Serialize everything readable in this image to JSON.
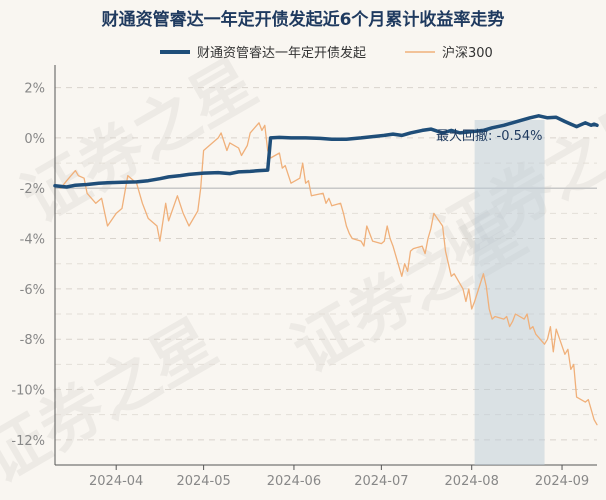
{
  "chart_data": {
    "type": "line",
    "title": "财通资管睿达一年定开债发起近6个月累计收益率走势",
    "watermark": "证券之星",
    "x_ticks": [
      "2024-04",
      "2024-05",
      "2024-06",
      "2024-07",
      "2024-08",
      "2024-09"
    ],
    "x_tick_dates": [
      "2024-04-01",
      "2024-05-01",
      "2024-06-01",
      "2024-07-01",
      "2024-08-01",
      "2024-09-01"
    ],
    "x_range": [
      "2024-03-11",
      "2024-09-13"
    ],
    "y_ticks": [
      2,
      0,
      -2,
      -4,
      -6,
      -8,
      -10,
      -12
    ],
    "y_tick_labels": [
      "2%",
      "0%",
      "-2%",
      "-4%",
      "-6%",
      "-8%",
      "-10%",
      "-12%"
    ],
    "ylim": [
      -13,
      2.5
    ],
    "grid": true,
    "legend_position": "top",
    "drawdown": {
      "label": "最大回撤: -0.54%",
      "start": "2024-08-02",
      "end": "2024-08-26"
    },
    "series": [
      {
        "name": "财通资管睿达一年定开债发起",
        "color": "#1f4e79",
        "points": [
          [
            "2024-03-11",
            -1.9
          ],
          [
            "2024-03-15",
            -1.95
          ],
          [
            "2024-03-18",
            -1.88
          ],
          [
            "2024-03-22",
            -1.85
          ],
          [
            "2024-03-26",
            -1.8
          ],
          [
            "2024-03-29",
            -1.78
          ],
          [
            "2024-04-03",
            -1.76
          ],
          [
            "2024-04-08",
            -1.75
          ],
          [
            "2024-04-12",
            -1.7
          ],
          [
            "2024-04-16",
            -1.62
          ],
          [
            "2024-04-19",
            -1.55
          ],
          [
            "2024-04-23",
            -1.5
          ],
          [
            "2024-04-26",
            -1.45
          ],
          [
            "2024-05-01",
            -1.4
          ],
          [
            "2024-05-06",
            -1.38
          ],
          [
            "2024-05-10",
            -1.42
          ],
          [
            "2024-05-13",
            -1.35
          ],
          [
            "2024-05-17",
            -1.33
          ],
          [
            "2024-05-20",
            -1.3
          ],
          [
            "2024-05-23",
            -1.28
          ],
          [
            "2024-05-24",
            0.0
          ],
          [
            "2024-05-27",
            0.02
          ],
          [
            "2024-05-31",
            0.0
          ],
          [
            "2024-06-05",
            0.0
          ],
          [
            "2024-06-10",
            -0.02
          ],
          [
            "2024-06-14",
            -0.05
          ],
          [
            "2024-06-19",
            -0.05
          ],
          [
            "2024-06-24",
            0.0
          ],
          [
            "2024-06-28",
            0.05
          ],
          [
            "2024-07-02",
            0.1
          ],
          [
            "2024-07-05",
            0.15
          ],
          [
            "2024-07-08",
            0.1
          ],
          [
            "2024-07-11",
            0.2
          ],
          [
            "2024-07-15",
            0.3
          ],
          [
            "2024-07-18",
            0.35
          ],
          [
            "2024-07-22",
            0.2
          ],
          [
            "2024-07-25",
            0.3
          ],
          [
            "2024-07-28",
            0.2
          ],
          [
            "2024-08-01",
            0.25
          ],
          [
            "2024-08-05",
            0.3
          ],
          [
            "2024-08-08",
            0.4
          ],
          [
            "2024-08-12",
            0.5
          ],
          [
            "2024-08-15",
            0.6
          ],
          [
            "2024-08-18",
            0.7
          ],
          [
            "2024-08-21",
            0.8
          ],
          [
            "2024-08-24",
            0.88
          ],
          [
            "2024-08-27",
            0.8
          ],
          [
            "2024-08-30",
            0.82
          ],
          [
            "2024-09-02",
            0.65
          ],
          [
            "2024-09-04",
            0.55
          ],
          [
            "2024-09-06",
            0.45
          ],
          [
            "2024-09-09",
            0.6
          ],
          [
            "2024-09-11",
            0.5
          ],
          [
            "2024-09-12",
            0.55
          ],
          [
            "2024-09-13",
            0.5
          ]
        ]
      },
      {
        "name": "沪深300",
        "color": "#f0b07a",
        "points": [
          [
            "2024-03-11",
            -1.9
          ],
          [
            "2024-03-13",
            -2.0
          ],
          [
            "2024-03-15",
            -1.7
          ],
          [
            "2024-03-18",
            -1.3
          ],
          [
            "2024-03-19",
            -1.5
          ],
          [
            "2024-03-21",
            -1.6
          ],
          [
            "2024-03-22",
            -2.2
          ],
          [
            "2024-03-25",
            -2.6
          ],
          [
            "2024-03-27",
            -2.4
          ],
          [
            "2024-03-29",
            -3.5
          ],
          [
            "2024-04-01",
            -3.0
          ],
          [
            "2024-04-03",
            -2.8
          ],
          [
            "2024-04-05",
            -1.5
          ],
          [
            "2024-04-08",
            -1.8
          ],
          [
            "2024-04-10",
            -2.6
          ],
          [
            "2024-04-12",
            -3.2
          ],
          [
            "2024-04-15",
            -3.5
          ],
          [
            "2024-04-16",
            -4.1
          ],
          [
            "2024-04-18",
            -2.6
          ],
          [
            "2024-04-19",
            -3.3
          ],
          [
            "2024-04-22",
            -2.3
          ],
          [
            "2024-04-24",
            -3.0
          ],
          [
            "2024-04-26",
            -3.5
          ],
          [
            "2024-04-29",
            -2.9
          ],
          [
            "2024-04-30",
            -2.0
          ],
          [
            "2024-05-01",
            -0.5
          ],
          [
            "2024-05-06",
            0.0
          ],
          [
            "2024-05-07",
            0.2
          ],
          [
            "2024-05-09",
            -0.5
          ],
          [
            "2024-05-10",
            -0.2
          ],
          [
            "2024-05-13",
            -0.4
          ],
          [
            "2024-05-14",
            -0.7
          ],
          [
            "2024-05-16",
            -0.3
          ],
          [
            "2024-05-17",
            0.2
          ],
          [
            "2024-05-20",
            0.6
          ],
          [
            "2024-05-21",
            0.3
          ],
          [
            "2024-05-22",
            0.5
          ],
          [
            "2024-05-23",
            -0.5
          ],
          [
            "2024-05-24",
            -0.8
          ],
          [
            "2024-05-27",
            -0.6
          ],
          [
            "2024-05-28",
            -1.2
          ],
          [
            "2024-05-29",
            -1.1
          ],
          [
            "2024-05-31",
            -1.8
          ],
          [
            "2024-06-03",
            -1.6
          ],
          [
            "2024-06-04",
            -1.0
          ],
          [
            "2024-06-05",
            -1.8
          ],
          [
            "2024-06-06",
            -1.7
          ],
          [
            "2024-06-07",
            -2.3
          ],
          [
            "2024-06-11",
            -2.2
          ],
          [
            "2024-06-12",
            -2.6
          ],
          [
            "2024-06-13",
            -2.4
          ],
          [
            "2024-06-14",
            -2.7
          ],
          [
            "2024-06-17",
            -2.6
          ],
          [
            "2024-06-18",
            -3.0
          ],
          [
            "2024-06-19",
            -3.5
          ],
          [
            "2024-06-20",
            -3.8
          ],
          [
            "2024-06-21",
            -4.0
          ],
          [
            "2024-06-24",
            -4.1
          ],
          [
            "2024-06-25",
            -4.3
          ],
          [
            "2024-06-26",
            -3.5
          ],
          [
            "2024-06-27",
            -3.8
          ],
          [
            "2024-06-28",
            -4.1
          ],
          [
            "2024-07-01",
            -4.2
          ],
          [
            "2024-07-02",
            -4.1
          ],
          [
            "2024-07-03",
            -3.5
          ],
          [
            "2024-07-04",
            -4.0
          ],
          [
            "2024-07-05",
            -4.3
          ],
          [
            "2024-07-08",
            -5.5
          ],
          [
            "2024-07-09",
            -5.0
          ],
          [
            "2024-07-10",
            -5.3
          ],
          [
            "2024-07-11",
            -4.5
          ],
          [
            "2024-07-12",
            -4.4
          ],
          [
            "2024-07-15",
            -4.3
          ],
          [
            "2024-07-16",
            -4.6
          ],
          [
            "2024-07-17",
            -4.0
          ],
          [
            "2024-07-18",
            -3.6
          ],
          [
            "2024-07-19",
            -3.0
          ],
          [
            "2024-07-22",
            -3.5
          ],
          [
            "2024-07-23",
            -4.5
          ],
          [
            "2024-07-24",
            -5.0
          ],
          [
            "2024-07-25",
            -5.5
          ],
          [
            "2024-07-26",
            -5.4
          ],
          [
            "2024-07-29",
            -6.0
          ],
          [
            "2024-07-30",
            -6.5
          ],
          [
            "2024-07-31",
            -6.0
          ],
          [
            "2024-08-01",
            -6.8
          ],
          [
            "2024-08-02",
            -6.5
          ],
          [
            "2024-08-05",
            -5.4
          ],
          [
            "2024-08-06",
            -5.9
          ],
          [
            "2024-08-07",
            -6.8
          ],
          [
            "2024-08-08",
            -7.2
          ],
          [
            "2024-08-09",
            -7.1
          ],
          [
            "2024-08-12",
            -7.2
          ],
          [
            "2024-08-13",
            -7.1
          ],
          [
            "2024-08-14",
            -7.5
          ],
          [
            "2024-08-15",
            -7.3
          ],
          [
            "2024-08-16",
            -7.0
          ],
          [
            "2024-08-19",
            -7.2
          ],
          [
            "2024-08-20",
            -7.0
          ],
          [
            "2024-08-21",
            -7.6
          ],
          [
            "2024-08-22",
            -7.5
          ],
          [
            "2024-08-23",
            -7.8
          ],
          [
            "2024-08-26",
            -8.2
          ],
          [
            "2024-08-27",
            -8.0
          ],
          [
            "2024-08-28",
            -7.5
          ],
          [
            "2024-08-29",
            -8.5
          ],
          [
            "2024-08-30",
            -7.6
          ],
          [
            "2024-09-02",
            -8.6
          ],
          [
            "2024-09-03",
            -8.4
          ],
          [
            "2024-09-04",
            -9.2
          ],
          [
            "2024-09-05",
            -9.0
          ],
          [
            "2024-09-06",
            -10.3
          ],
          [
            "2024-09-09",
            -10.5
          ],
          [
            "2024-09-10",
            -10.4
          ],
          [
            "2024-09-11",
            -10.8
          ],
          [
            "2024-09-12",
            -11.2
          ],
          [
            "2024-09-13",
            -11.4
          ]
        ]
      }
    ]
  }
}
